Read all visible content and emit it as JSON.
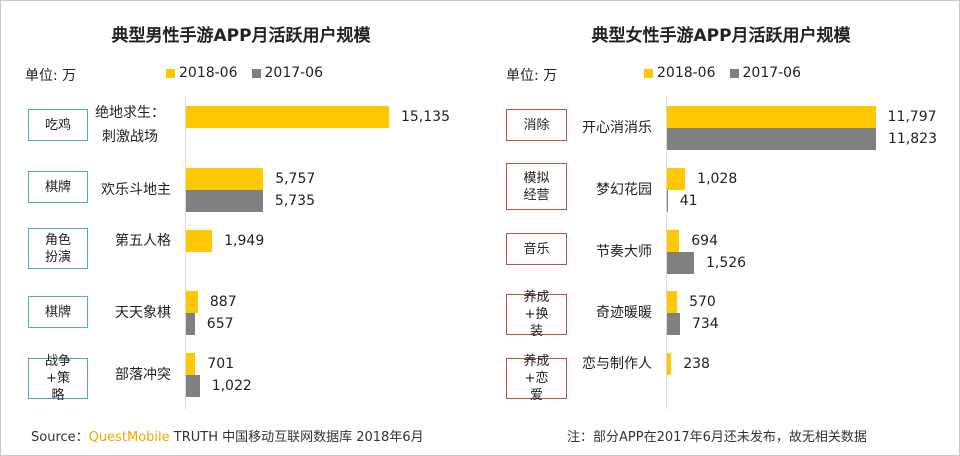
{
  "colors": {
    "y2018": "#FFC800",
    "y2017": "#808080",
    "tag_male_border": "#4BACC6",
    "tag_female_border": "#C0504D",
    "brand": "#F0A800"
  },
  "chart_data": [
    {
      "type": "bar",
      "orientation": "horizontal",
      "title": "典型男性手游APP月活跃用户规模",
      "unit_label": "单位: 万",
      "legend": [
        "2018-06",
        "2017-06"
      ],
      "legend_position": "top",
      "categories": [
        "绝地求生：刺激战场",
        "欢乐斗地主",
        "第五人格",
        "天天象棋",
        "部落冲突"
      ],
      "tags": [
        "吃鸡",
        "棋牌",
        "角色扮演",
        "棋牌",
        "战争+策略"
      ],
      "series": [
        {
          "name": "2018-06",
          "values": [
            15135,
            5757,
            1949,
            887,
            701
          ],
          "labels": [
            "15,135",
            "5,757",
            "1,949",
            "887",
            "701"
          ]
        },
        {
          "name": "2017-06",
          "values": [
            null,
            5735,
            null,
            657,
            1022
          ],
          "labels": [
            "",
            "5,735",
            "",
            "657",
            "1,022"
          ]
        }
      ],
      "grid": false
    },
    {
      "type": "bar",
      "orientation": "horizontal",
      "title": "典型女性手游APP月活跃用户规模",
      "unit_label": "单位: 万",
      "legend": [
        "2018-06",
        "2017-06"
      ],
      "legend_position": "top",
      "categories": [
        "开心消消乐",
        "梦幻花园",
        "节奏大师",
        "奇迹暖暖",
        "恋与制作人"
      ],
      "tags": [
        "消除",
        "模拟经营",
        "音乐",
        "养成+换装",
        "养成+恋爱"
      ],
      "series": [
        {
          "name": "2018-06",
          "values": [
            11797,
            1028,
            694,
            570,
            238
          ],
          "labels": [
            "11,797",
            "1,028",
            "694",
            "570",
            "238"
          ]
        },
        {
          "name": "2017-06",
          "values": [
            11823,
            41,
            1526,
            734,
            null
          ],
          "labels": [
            "11,823",
            "41",
            "1,526",
            "734",
            ""
          ]
        }
      ],
      "grid": false
    }
  ],
  "footer": {
    "source_prefix": "Source：",
    "brand": "QuestMobile",
    "source_rest": " TRUTH 中国移动互联网数据库 2018年6月",
    "note": "注：部分APP在2017年6月还未发布，故无相关数据"
  }
}
